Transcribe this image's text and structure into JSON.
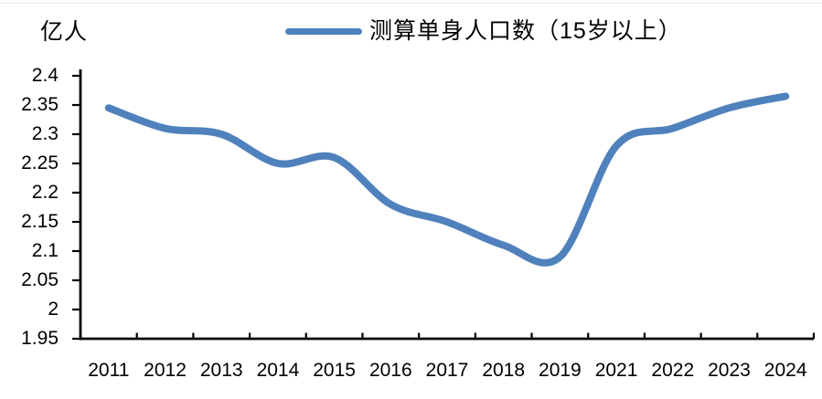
{
  "header": {
    "unit_label": "亿人"
  },
  "legend": {
    "label": "测算单身人口数（15岁以上）"
  },
  "colors": {
    "series_blue": "#4F81BD",
    "axis": "#000000",
    "text": "#000000"
  },
  "chart_data": {
    "type": "line",
    "title": "",
    "ylabel_unit": "亿人",
    "legend_position": "top",
    "grid": false,
    "smooth": true,
    "ylim": [
      1.95,
      2.4
    ],
    "ytick_step": 0.05,
    "y_tick_labels": [
      "2.4",
      "2.35",
      "2.3",
      "2.25",
      "2.2",
      "2.15",
      "2.1",
      "2.05",
      "2",
      "1.95"
    ],
    "categories": [
      "2011",
      "2012",
      "2013",
      "2014",
      "2015",
      "2016",
      "2017",
      "2018",
      "2019",
      "2021",
      "2022",
      "2023",
      "2024"
    ],
    "series": [
      {
        "name": "测算单身人口数（15岁以上）",
        "color": "#4F81BD",
        "values": [
          2.345,
          2.31,
          2.3,
          2.25,
          2.26,
          2.18,
          2.15,
          2.11,
          2.09,
          2.28,
          2.31,
          2.345,
          2.365
        ]
      }
    ]
  }
}
